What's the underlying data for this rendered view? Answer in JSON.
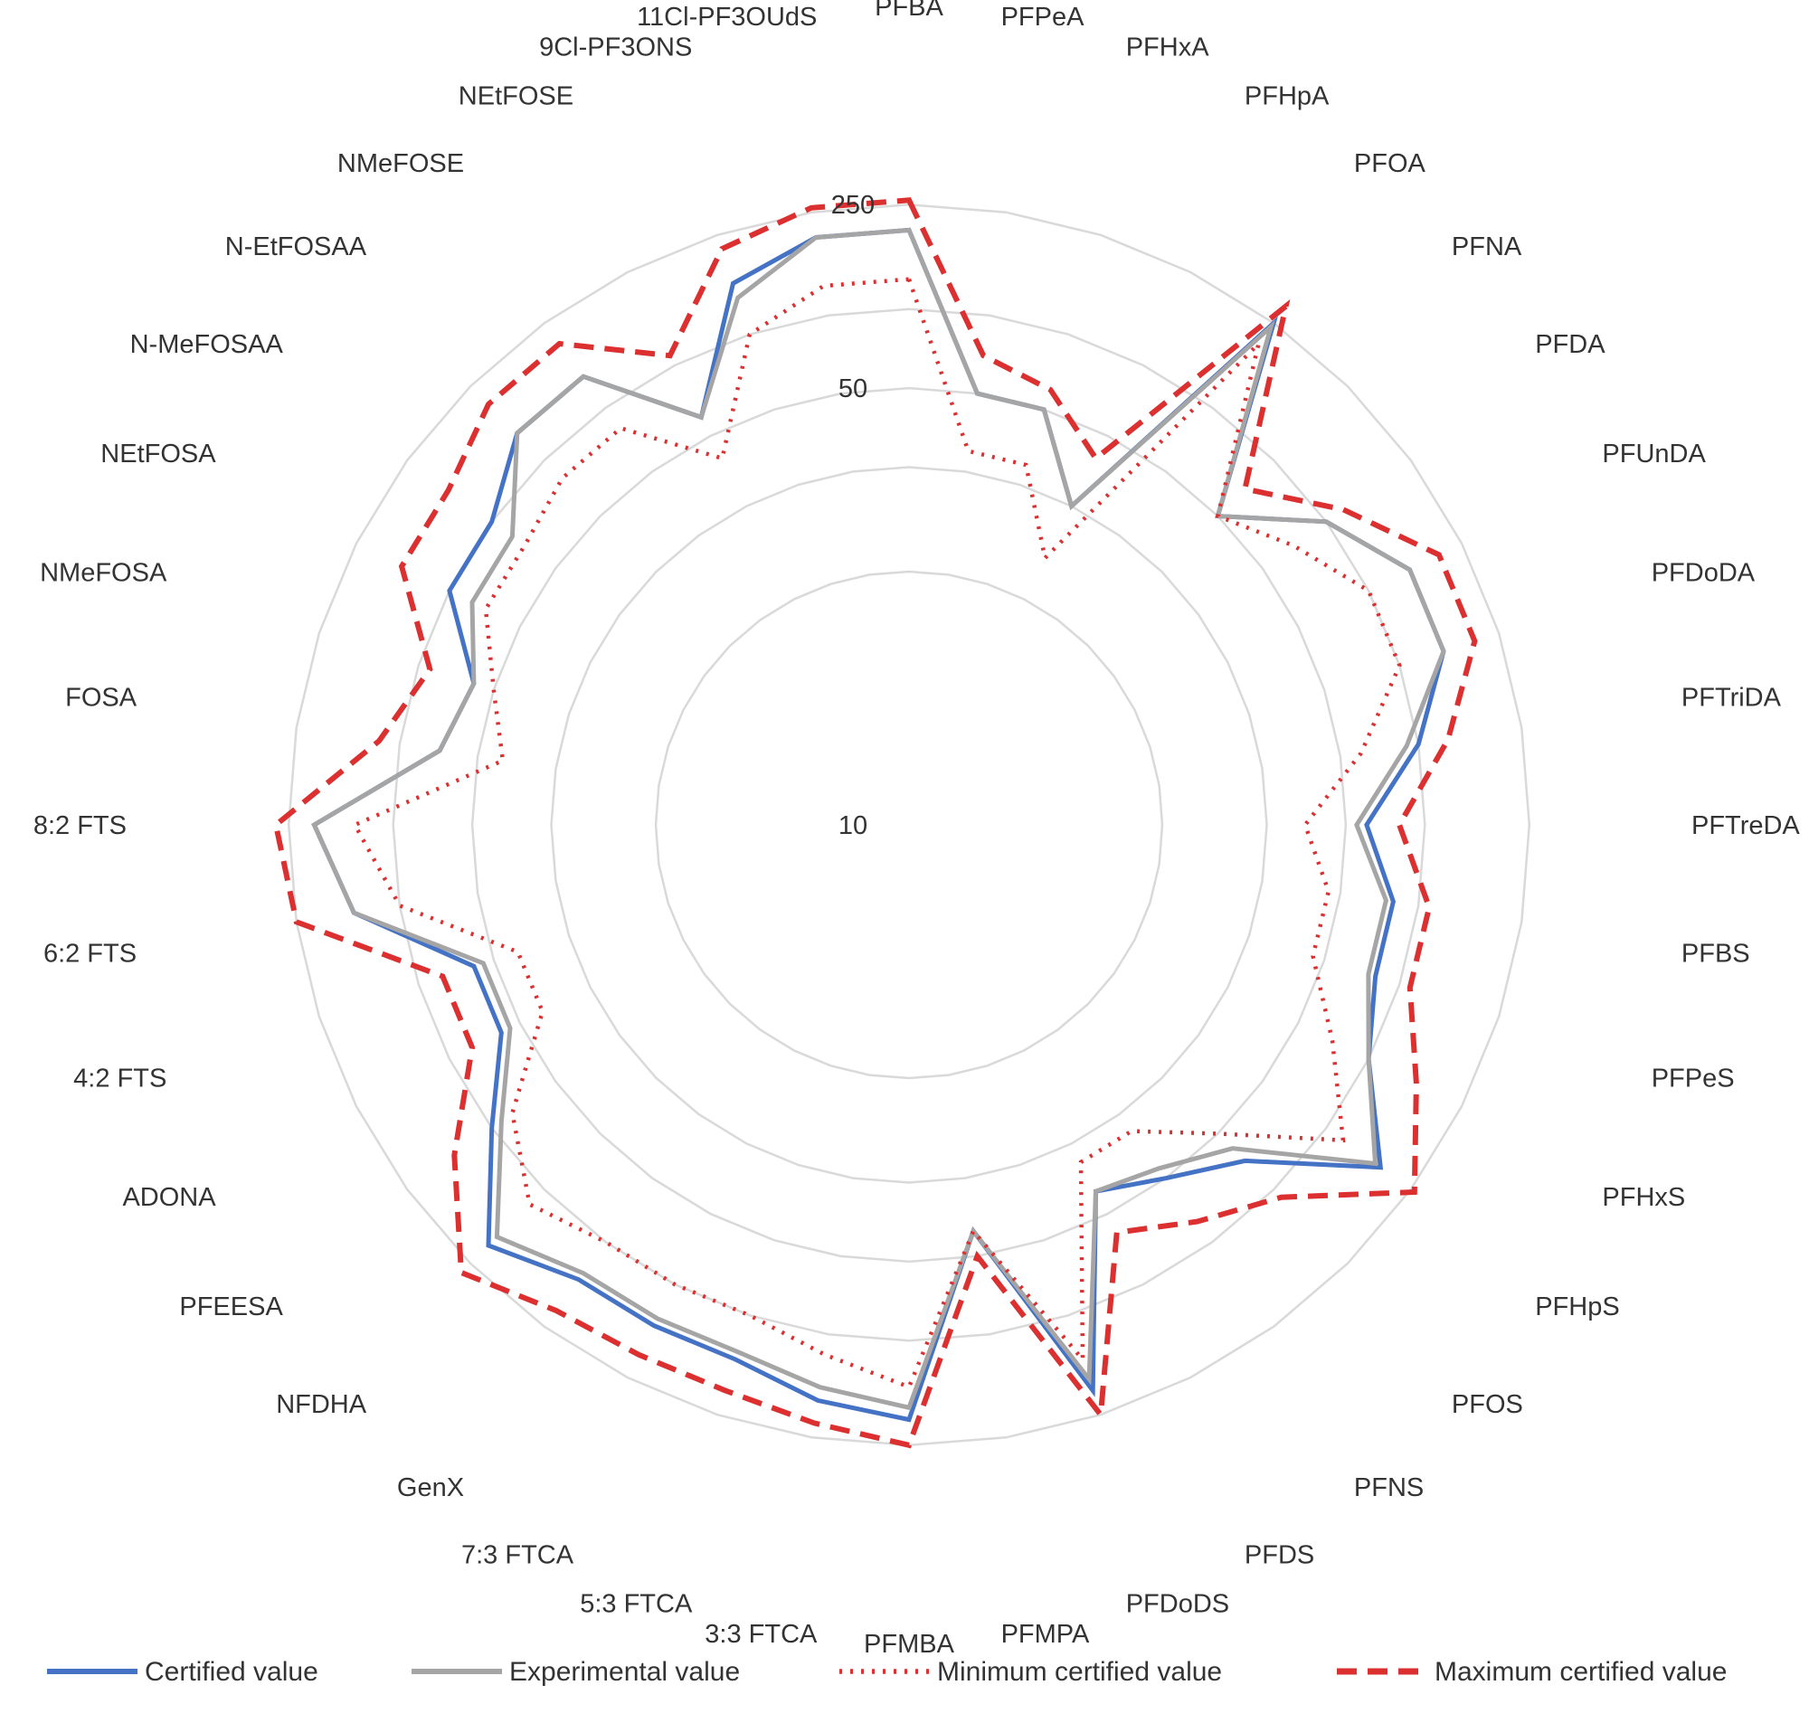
{
  "chart_data": {
    "type": "radar",
    "scale": "log",
    "rlim": [
      10,
      400
    ],
    "grid": true,
    "legend_position": "bottom",
    "gridline_values": [
      10,
      25,
      50,
      100,
      250
    ],
    "tick_labels": [
      {
        "value": 10,
        "label": "10"
      },
      {
        "value": 50,
        "label": "50"
      },
      {
        "value": 250,
        "label": "250"
      }
    ],
    "categories": [
      "PFBA",
      "PFPeA",
      "PFHxA",
      "PFHpA",
      "PFOA",
      "PFNA",
      "PFDA",
      "PFUnDA",
      "PFDoDA",
      "PFTriDA",
      "PFTreDA",
      "PFBS",
      "PFPeS",
      "PFHxS",
      "PFHpS",
      "PFOS",
      "PFNS",
      "PFDS",
      "PFDoDS",
      "PFMPA",
      "PFMBA",
      "3:3 FTCA",
      "5:3 FTCA",
      "7:3 FTCA",
      "GenX",
      "NFDHA",
      "PFEESA",
      "ADONA",
      "4:2 FTS",
      "6:2 FTS",
      "8:2 FTS",
      "FOSA",
      "NMeFOSA",
      "NEtFOSA",
      "N-MeFOSAA",
      "N-EtFOSAA",
      "NMeFOSE",
      "NEtFOSE",
      "9Cl-PF3ONS",
      "11Cl-PF3OUdS"
    ],
    "series": [
      {
        "name": "Certified value",
        "color": "#4472c4",
        "dash": "solid",
        "values": [
          200,
          50,
          50,
          25,
          250,
          50,
          100,
          150,
          150,
          100,
          60,
          80,
          80,
          100,
          180,
          70,
          50,
          40,
          200,
          40,
          200,
          180,
          150,
          150,
          150,
          200,
          100,
          60,
          60,
          150,
          200,
          70,
          60,
          100,
          100,
          140,
          140,
          60,
          160,
          200
        ]
      },
      {
        "name": "Experimental value",
        "color": "#a5a5a5",
        "dash": "solid",
        "values": [
          200,
          50,
          50,
          25,
          240,
          50,
          100,
          150,
          150,
          90,
          55,
          75,
          75,
          100,
          170,
          60,
          45,
          40,
          180,
          40,
          180,
          160,
          140,
          140,
          140,
          180,
          90,
          55,
          55,
          150,
          200,
          70,
          60,
          80,
          80,
          140,
          140,
          60,
          140,
          200
        ]
      },
      {
        "name": "Minimum certified value",
        "color": "#dc2f2f",
        "dash": "dotted",
        "values": [
          130,
          30,
          30,
          15,
          200,
          50,
          70,
          100,
          100,
          60,
          35,
          45,
          45,
          70,
          120,
          50,
          30,
          30,
          150,
          40,
          150,
          120,
          100,
          100,
          100,
          120,
          80,
          40,
          40,
          100,
          140,
          40,
          50,
          70,
          70,
          80,
          80,
          40,
          100,
          130
        ]
      },
      {
        "name": "Maximum certified value",
        "color": "#dc2f2f",
        "dash": "dashed",
        "values": [
          260,
          70,
          60,
          40,
          300,
          70,
          120,
          200,
          200,
          130,
          80,
          110,
          110,
          160,
          260,
          110,
          80,
          60,
          250,
          50,
          250,
          220,
          200,
          200,
          210,
          280,
          150,
          80,
          80,
          250,
          280,
          120,
          90,
          160,
          160,
          200,
          200,
          110,
          220,
          260
        ]
      }
    ]
  }
}
